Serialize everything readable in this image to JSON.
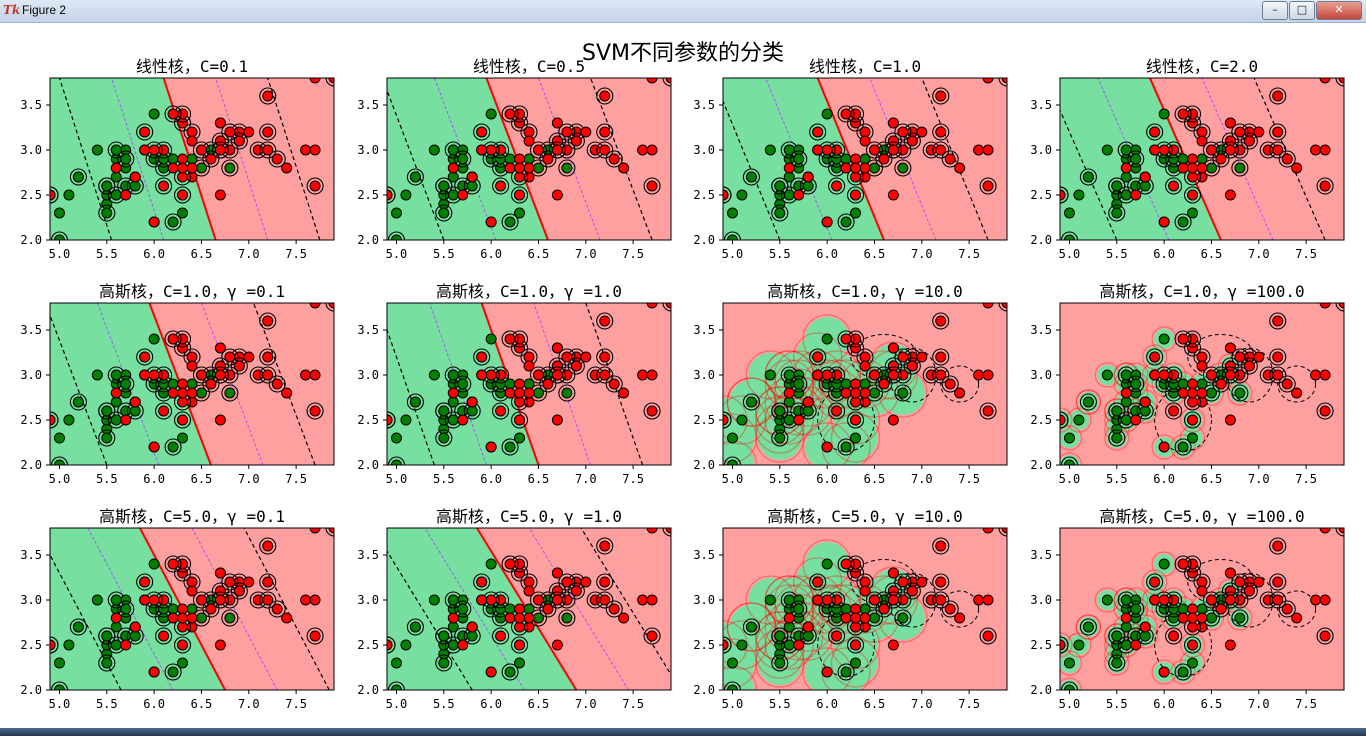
{
  "window": {
    "title": "Figure 2",
    "app_icon": "tk-feather-icon",
    "buttons": [
      "minimize",
      "maximize",
      "close"
    ]
  },
  "figure": {
    "suptitle": "SVM不同参数的分类"
  },
  "chart_data": [
    {
      "type": "scatter",
      "title": "线性核，C=0.1",
      "kernel": "linear",
      "C": 0.1,
      "xlim": [
        4.9,
        7.9
      ],
      "ylim": [
        2.0,
        3.8
      ],
      "xticks": [
        5.0,
        5.5,
        6.0,
        6.5,
        7.0,
        7.5
      ],
      "yticks": [
        2.0,
        2.5,
        3.0,
        3.5
      ],
      "boundary": {
        "x_at_y2": 6.65,
        "x_at_y38": 6.1
      }
    },
    {
      "type": "scatter",
      "title": "线性核，C=0.5",
      "kernel": "linear",
      "C": 0.5,
      "xlim": [
        4.9,
        7.9
      ],
      "ylim": [
        2.0,
        3.8
      ],
      "xticks": [
        5.0,
        5.5,
        6.0,
        6.5,
        7.0,
        7.5
      ],
      "yticks": [
        2.0,
        2.5,
        3.0,
        3.5
      ],
      "boundary": {
        "x_at_y2": 6.6,
        "x_at_y38": 5.95
      }
    },
    {
      "type": "scatter",
      "title": "线性核，C=1.0",
      "kernel": "linear",
      "C": 1.0,
      "xlim": [
        4.9,
        7.9
      ],
      "ylim": [
        2.0,
        3.8
      ],
      "xticks": [
        5.0,
        5.5,
        6.0,
        6.5,
        7.0,
        7.5
      ],
      "yticks": [
        2.0,
        2.5,
        3.0,
        3.5
      ],
      "boundary": {
        "x_at_y2": 6.6,
        "x_at_y38": 5.9
      }
    },
    {
      "type": "scatter",
      "title": "线性核，C=2.0",
      "kernel": "linear",
      "C": 2.0,
      "xlim": [
        4.9,
        7.9
      ],
      "ylim": [
        2.0,
        3.8
      ],
      "xticks": [
        5.0,
        5.5,
        6.0,
        6.5,
        7.0,
        7.5
      ],
      "yticks": [
        2.0,
        2.5,
        3.0,
        3.5
      ],
      "boundary": {
        "x_at_y2": 6.6,
        "x_at_y38": 5.85
      }
    },
    {
      "type": "scatter",
      "title": "高斯核，C=1.0，γ =0.1",
      "kernel": "rbf",
      "C": 1.0,
      "gamma": 0.1,
      "xlim": [
        4.9,
        7.9
      ],
      "ylim": [
        2.0,
        3.8
      ],
      "xticks": [
        5.0,
        5.5,
        6.0,
        6.5,
        7.0,
        7.5
      ],
      "yticks": [
        2.0,
        2.5,
        3.0,
        3.5
      ],
      "boundary": {
        "x_at_y2": 6.6,
        "x_at_y38": 5.95
      }
    },
    {
      "type": "scatter",
      "title": "高斯核，C=1.0，γ =1.0",
      "kernel": "rbf",
      "C": 1.0,
      "gamma": 1.0,
      "xlim": [
        4.9,
        7.9
      ],
      "ylim": [
        2.0,
        3.8
      ],
      "xticks": [
        5.0,
        5.5,
        6.0,
        6.5,
        7.0,
        7.5
      ],
      "yticks": [
        2.0,
        2.5,
        3.0,
        3.5
      ],
      "boundary": {
        "x_at_y2": 6.5,
        "x_at_y38": 5.9
      }
    },
    {
      "type": "scatter",
      "title": "高斯核，C=1.0，γ =10.0",
      "kernel": "rbf",
      "C": 1.0,
      "gamma": 10.0,
      "xlim": [
        4.9,
        7.9
      ],
      "ylim": [
        2.0,
        3.8
      ],
      "xticks": [
        5.0,
        5.5,
        6.0,
        6.5,
        7.0,
        7.5
      ],
      "yticks": [
        2.0,
        2.5,
        3.0,
        3.5
      ]
    },
    {
      "type": "scatter",
      "title": "高斯核，C=1.0，γ =100.0",
      "kernel": "rbf",
      "C": 1.0,
      "gamma": 100.0,
      "xlim": [
        4.9,
        7.9
      ],
      "ylim": [
        2.0,
        3.8
      ],
      "xticks": [
        5.0,
        5.5,
        6.0,
        6.5,
        7.0,
        7.5
      ],
      "yticks": [
        2.0,
        2.5,
        3.0,
        3.5
      ]
    },
    {
      "type": "scatter",
      "title": "高斯核，C=5.0，γ =0.1",
      "kernel": "rbf",
      "C": 5.0,
      "gamma": 0.1,
      "xlim": [
        4.9,
        7.9
      ],
      "ylim": [
        2.0,
        3.8
      ],
      "xticks": [
        5.0,
        5.5,
        6.0,
        6.5,
        7.0,
        7.5
      ],
      "yticks": [
        2.0,
        2.5,
        3.0,
        3.5
      ],
      "boundary": {
        "x_at_y2": 6.75,
        "x_at_y38": 5.85
      }
    },
    {
      "type": "scatter",
      "title": "高斯核，C=5.0，γ =1.0",
      "kernel": "rbf",
      "C": 5.0,
      "gamma": 1.0,
      "xlim": [
        4.9,
        7.9
      ],
      "ylim": [
        2.0,
        3.8
      ],
      "xticks": [
        5.0,
        5.5,
        6.0,
        6.5,
        7.0,
        7.5
      ],
      "yticks": [
        2.0,
        2.5,
        3.0,
        3.5
      ],
      "boundary": {
        "x_at_y2": 6.9,
        "x_at_y38": 5.85
      }
    },
    {
      "type": "scatter",
      "title": "高斯核，C=5.0，γ =10.0",
      "kernel": "rbf",
      "C": 5.0,
      "gamma": 10.0,
      "xlim": [
        4.9,
        7.9
      ],
      "ylim": [
        2.0,
        3.8
      ],
      "xticks": [
        5.0,
        5.5,
        6.0,
        6.5,
        7.0,
        7.5
      ],
      "yticks": [
        2.0,
        2.5,
        3.0,
        3.5
      ]
    },
    {
      "type": "scatter",
      "title": "高斯核，C=5.0，γ =100.0",
      "kernel": "rbf",
      "C": 5.0,
      "gamma": 100.0,
      "xlim": [
        4.9,
        7.9
      ],
      "ylim": [
        2.0,
        3.8
      ],
      "xticks": [
        5.0,
        5.5,
        6.0,
        6.5,
        7.0,
        7.5
      ],
      "yticks": [
        2.0,
        2.5,
        3.0,
        3.5
      ]
    }
  ],
  "points": {
    "green": [
      [
        4.9,
        2.5
      ],
      [
        5.0,
        2.3
      ],
      [
        5.0,
        2.0
      ],
      [
        5.1,
        2.5
      ],
      [
        5.2,
        2.7
      ],
      [
        5.5,
        2.4
      ],
      [
        5.5,
        2.3
      ],
      [
        5.5,
        2.5
      ],
      [
        5.5,
        2.6
      ],
      [
        5.6,
        2.9
      ],
      [
        5.6,
        3.0
      ],
      [
        5.6,
        2.7
      ],
      [
        5.6,
        2.5
      ],
      [
        5.7,
        2.8
      ],
      [
        5.7,
        2.6
      ],
      [
        5.7,
        3.0
      ],
      [
        5.7,
        2.9
      ],
      [
        5.8,
        2.7
      ],
      [
        5.8,
        2.6
      ],
      [
        5.9,
        3.0
      ],
      [
        5.9,
        3.2
      ],
      [
        6.0,
        2.2
      ],
      [
        6.0,
        2.9
      ],
      [
        6.0,
        3.4
      ],
      [
        6.1,
        2.8
      ],
      [
        6.1,
        3.0
      ],
      [
        6.1,
        2.9
      ],
      [
        6.2,
        2.9
      ],
      [
        6.2,
        2.2
      ],
      [
        6.3,
        2.3
      ],
      [
        6.3,
        2.5
      ],
      [
        6.4,
        2.9
      ],
      [
        6.7,
        3.0
      ],
      [
        6.7,
        3.1
      ],
      [
        6.8,
        2.8
      ],
      [
        5.4,
        3.0
      ],
      [
        5.5,
        2.6
      ],
      [
        5.6,
        3.0
      ],
      [
        6.6,
        3.0
      ],
      [
        5.2,
        2.7
      ],
      [
        6.5,
        2.8
      ]
    ],
    "red": [
      [
        6.3,
        3.3
      ],
      [
        5.8,
        2.7
      ],
      [
        7.1,
        3.0
      ],
      [
        6.3,
        2.9
      ],
      [
        6.5,
        3.0
      ],
      [
        7.6,
        3.0
      ],
      [
        7.3,
        2.9
      ],
      [
        6.7,
        2.5
      ],
      [
        7.2,
        3.6
      ],
      [
        6.4,
        2.7
      ],
      [
        6.8,
        3.0
      ],
      [
        5.7,
        2.5
      ],
      [
        6.4,
        3.2
      ],
      [
        7.7,
        3.8
      ],
      [
        7.7,
        2.6
      ],
      [
        6.0,
        2.2
      ],
      [
        6.9,
        3.2
      ],
      [
        5.6,
        2.8
      ],
      [
        6.3,
        2.7
      ],
      [
        6.7,
        3.3
      ],
      [
        7.2,
        3.2
      ],
      [
        6.2,
        2.8
      ],
      [
        6.1,
        3.0
      ],
      [
        6.4,
        2.8
      ],
      [
        7.2,
        3.0
      ],
      [
        7.4,
        2.8
      ],
      [
        7.9,
        3.8
      ],
      [
        6.3,
        2.8
      ],
      [
        6.1,
        2.6
      ],
      [
        7.7,
        3.0
      ],
      [
        6.3,
        3.4
      ],
      [
        6.4,
        3.1
      ],
      [
        6.0,
        3.0
      ],
      [
        6.9,
        3.1
      ],
      [
        6.7,
        3.1
      ],
      [
        5.8,
        2.7
      ],
      [
        6.8,
        3.2
      ],
      [
        6.7,
        3.3
      ],
      [
        6.7,
        3.0
      ],
      [
        6.5,
        3.0
      ],
      [
        6.2,
        3.4
      ],
      [
        5.9,
        3.0
      ],
      [
        4.9,
        2.5
      ],
      [
        7.0,
        3.2
      ],
      [
        6.9,
        3.1
      ],
      [
        6.3,
        2.5
      ],
      [
        6.6,
        2.9
      ],
      [
        5.9,
        3.2
      ]
    ]
  },
  "colors": {
    "class0_region": "#77e0a0",
    "class1_region": "#ffa0a0",
    "class0_point": "#008000",
    "class1_point": "#ff0000",
    "boundary": "#ff0000",
    "margin": "#000000",
    "level": "#a040ff"
  }
}
